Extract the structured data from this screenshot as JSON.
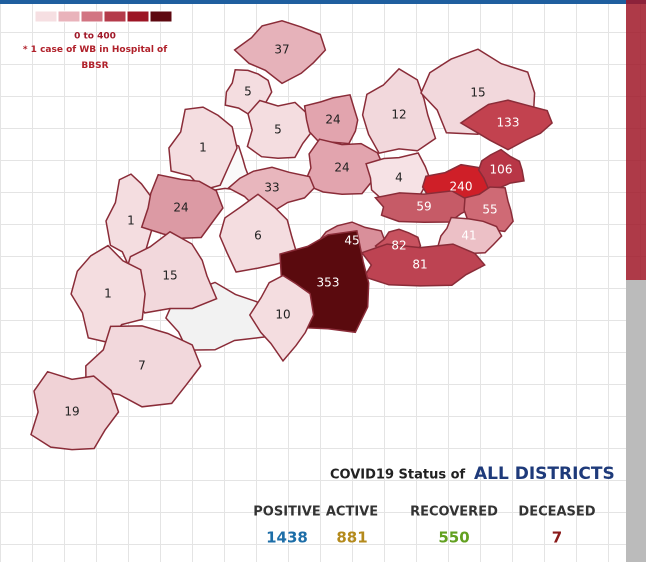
{
  "legend": {
    "colors": [
      "#f6dfe2",
      "#e9b3bb",
      "#d27482",
      "#b43a4a",
      "#9c1424",
      "#5e0810"
    ],
    "range": "0 to 400",
    "note": "* 1 case of WB in Hospital of BBSR"
  },
  "districts": [
    {
      "value": 37,
      "color": "#e6b2ba"
    },
    {
      "value": 5,
      "color": "#f4dde0"
    },
    {
      "value": 5,
      "color": "#f4dde0"
    },
    {
      "value": 24,
      "color": "#e2a4ae"
    },
    {
      "value": 12,
      "color": "#f2d8dc"
    },
    {
      "value": 15,
      "color": "#f2d8dc"
    },
    {
      "value": 133,
      "color": "#c2424f"
    },
    {
      "value": 1,
      "color": "#f4dde0"
    },
    {
      "value": 24,
      "color": "#e2a4ae"
    },
    {
      "value": 4,
      "color": "#f6e2e5"
    },
    {
      "value": 240,
      "color": "#cf1f28"
    },
    {
      "value": 106,
      "color": "#b83646"
    },
    {
      "value": 33,
      "color": "#e8b6bd"
    },
    {
      "value": 1,
      "color": "#f4dde0"
    },
    {
      "value": 24,
      "color": "#dc9aa4"
    },
    {
      "value": 59,
      "color": "#c65b67"
    },
    {
      "value": 55,
      "color": "#cf6a75"
    },
    {
      "value": 6,
      "color": "#f4dde0"
    },
    {
      "value": 45,
      "color": "#d98f9a"
    },
    {
      "value": 82,
      "color": "#c7525f"
    },
    {
      "value": 41,
      "color": "#ecc0c6"
    },
    {
      "value": 81,
      "color": "#bd4352"
    },
    {
      "value": 353,
      "color": "#5a0a0e"
    },
    {
      "value": 15,
      "color": "#f2d8dc"
    },
    {
      "value": 1,
      "color": "#f4dde0"
    },
    {
      "value": 10,
      "color": "#f4dde0"
    },
    {
      "value": 7,
      "color": "#f2d8dc"
    },
    {
      "value": 19,
      "color": "#f0d2d6"
    }
  ],
  "status": {
    "title": {
      "lead": "COVID19 Status of",
      "emphasis": "ALL DISTRICTS"
    },
    "items": [
      {
        "name": "POSITIVE",
        "value": 1438,
        "color": "#1d6ea8"
      },
      {
        "name": "ACTIVE",
        "value": 881,
        "color": "#b48a1c"
      },
      {
        "name": "RECOVERED",
        "value": 550,
        "color": "#62a020"
      },
      {
        "name": "DECEASED",
        "value": 7,
        "color": "#8a1a1a"
      }
    ]
  }
}
